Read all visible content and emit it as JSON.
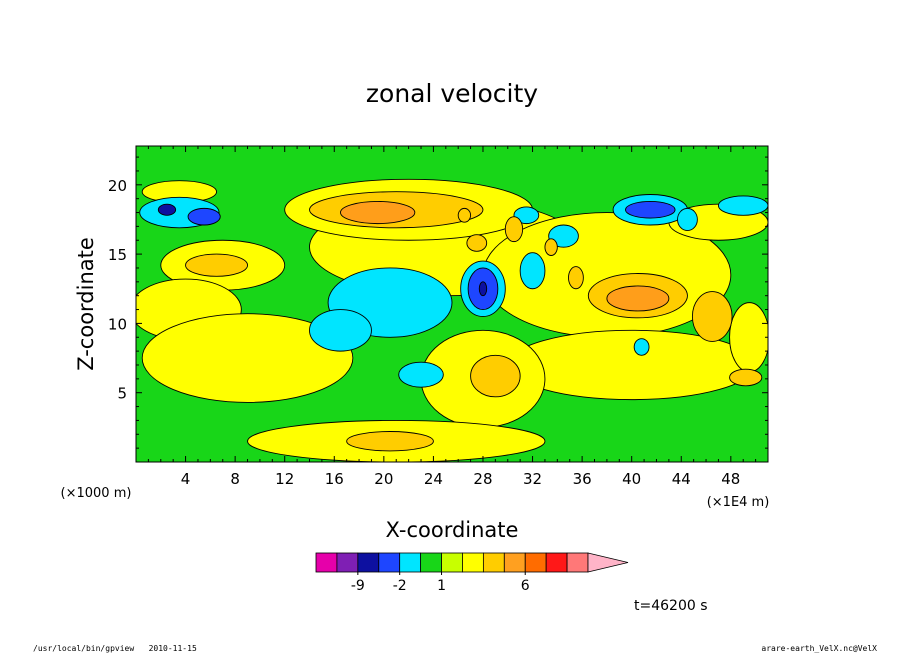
{
  "chart_data": {
    "type": "heatmap",
    "title": "zonal velocity",
    "xlabel": "X-coordinate",
    "ylabel": "Z-coordinate",
    "x_unit_left": "(×1000 m)",
    "x_unit_right": "(×1E4 m)",
    "xlim": [
      0,
      51
    ],
    "ylim": [
      0,
      22.8
    ],
    "x_ticks": [
      4,
      8,
      12,
      16,
      20,
      24,
      28,
      32,
      36,
      40,
      44,
      48
    ],
    "y_ticks": [
      5,
      10,
      15,
      20
    ],
    "time_label": "t=46200 s",
    "footer_left": "/usr/local/bin/gpview   2010-11-15",
    "footer_right": "arare-earth_VelX.nc@VelX",
    "colorbar": {
      "bins": [
        {
          "color": "#e600aa"
        },
        {
          "color": "#7f1fb4"
        },
        {
          "color": "#0d10a0"
        },
        {
          "color": "#1e46ff"
        },
        {
          "color": "#00e5ff"
        },
        {
          "color": "#18d618"
        },
        {
          "color": "#c8ff00"
        },
        {
          "color": "#ffff00"
        },
        {
          "color": "#ffcd00"
        },
        {
          "color": "#ffa020"
        },
        {
          "color": "#ff6c00"
        },
        {
          "color": "#ff1818"
        },
        {
          "color": "#ff7878"
        },
        {
          "color": "#ffb4c8"
        }
      ],
      "tick_labels": [
        {
          "label": "-9",
          "bin": 2
        },
        {
          "label": "-2",
          "bin": 4
        },
        {
          "label": "1",
          "bin": 6
        },
        {
          "label": "6",
          "bin": 10
        }
      ]
    },
    "background_class": "weak (green, near 0)",
    "regions": [
      {
        "cls": "yellow",
        "cx": 7,
        "cy": 14.2,
        "rx": 5,
        "ry": 1.8
      },
      {
        "cls": "orange",
        "cx": 6.5,
        "cy": 14.2,
        "rx": 2.5,
        "ry": 0.8
      },
      {
        "cls": "yellow",
        "cx": 4,
        "cy": 11,
        "rx": 4.5,
        "ry": 2.2
      },
      {
        "cls": "yellow",
        "cx": 9,
        "cy": 7.5,
        "rx": 8.5,
        "ry": 3.2
      },
      {
        "cls": "yellow",
        "cx": 25,
        "cy": 15.5,
        "rx": 11,
        "ry": 3.5
      },
      {
        "cls": "yellow",
        "cx": 22,
        "cy": 18.2,
        "rx": 10,
        "ry": 2.2
      },
      {
        "cls": "orange",
        "cx": 21,
        "cy": 18.2,
        "rx": 7,
        "ry": 1.3
      },
      {
        "cls": "dorange",
        "cx": 19.5,
        "cy": 18,
        "rx": 3,
        "ry": 0.8
      },
      {
        "cls": "yellow",
        "cx": 38,
        "cy": 13.5,
        "rx": 10,
        "ry": 4.5
      },
      {
        "cls": "orange",
        "cx": 40.5,
        "cy": 12,
        "rx": 4,
        "ry": 1.6
      },
      {
        "cls": "dorange",
        "cx": 40.5,
        "cy": 11.8,
        "rx": 2.5,
        "ry": 0.9
      },
      {
        "cls": "yellow",
        "cx": 40,
        "cy": 7,
        "rx": 10,
        "ry": 2.5
      },
      {
        "cls": "yellow",
        "cx": 28,
        "cy": 6,
        "rx": 5,
        "ry": 3.5
      },
      {
        "cls": "orange",
        "cx": 29,
        "cy": 6.2,
        "rx": 2,
        "ry": 1.5
      },
      {
        "cls": "yellow",
        "cx": 21,
        "cy": 1.5,
        "rx": 12,
        "ry": 1.5
      },
      {
        "cls": "orange",
        "cx": 20.5,
        "cy": 1.5,
        "rx": 3.5,
        "ry": 0.7
      },
      {
        "cls": "yellow",
        "cx": 47,
        "cy": 17.3,
        "rx": 4,
        "ry": 1.3
      },
      {
        "cls": "yellow",
        "cx": 49.5,
        "cy": 9,
        "rx": 1.6,
        "ry": 2.5
      },
      {
        "cls": "orange",
        "cx": 49.2,
        "cy": 6.1,
        "rx": 1.3,
        "ry": 0.6
      },
      {
        "cls": "orange",
        "cx": 46.5,
        "cy": 10.5,
        "rx": 1.6,
        "ry": 1.8
      },
      {
        "cls": "yellow",
        "cx": 3.5,
        "cy": 19.5,
        "rx": 3,
        "ry": 0.8
      },
      {
        "cls": "cyan",
        "cx": 3.5,
        "cy": 18,
        "rx": 3.2,
        "ry": 1.1
      },
      {
        "cls": "blue",
        "cx": 5.5,
        "cy": 17.7,
        "rx": 1.3,
        "ry": 0.6
      },
      {
        "cls": "dblue",
        "cx": 2.5,
        "cy": 18.2,
        "rx": 0.7,
        "ry": 0.4
      },
      {
        "cls": "cyan",
        "cx": 20.5,
        "cy": 11.5,
        "rx": 5,
        "ry": 2.5
      },
      {
        "cls": "cyan",
        "cx": 16.5,
        "cy": 9.5,
        "rx": 2.5,
        "ry": 1.5
      },
      {
        "cls": "cyan",
        "cx": 23,
        "cy": 6.3,
        "rx": 1.8,
        "ry": 0.9
      },
      {
        "cls": "cyan",
        "cx": 28,
        "cy": 12.5,
        "rx": 1.8,
        "ry": 2
      },
      {
        "cls": "blue",
        "cx": 28,
        "cy": 12.5,
        "rx": 1.2,
        "ry": 1.5
      },
      {
        "cls": "dblue",
        "cx": 28,
        "cy": 12.5,
        "rx": 0.3,
        "ry": 0.5
      },
      {
        "cls": "cyan",
        "cx": 41.5,
        "cy": 18.2,
        "rx": 3,
        "ry": 1.1
      },
      {
        "cls": "blue",
        "cx": 41.5,
        "cy": 18.2,
        "rx": 2,
        "ry": 0.6
      },
      {
        "cls": "cyan",
        "cx": 44.5,
        "cy": 17.5,
        "rx": 0.8,
        "ry": 0.8
      },
      {
        "cls": "cyan",
        "cx": 49,
        "cy": 18.5,
        "rx": 2,
        "ry": 0.7
      },
      {
        "cls": "cyan",
        "cx": 32,
        "cy": 13.8,
        "rx": 1,
        "ry": 1.3
      },
      {
        "cls": "cyan",
        "cx": 34.5,
        "cy": 16.3,
        "rx": 1.2,
        "ry": 0.8
      },
      {
        "cls": "cyan",
        "cx": 40.8,
        "cy": 8.3,
        "rx": 0.6,
        "ry": 0.6
      },
      {
        "cls": "cyan",
        "cx": 31.5,
        "cy": 17.8,
        "rx": 1,
        "ry": 0.6
      },
      {
        "cls": "orange",
        "cx": 27.5,
        "cy": 15.8,
        "rx": 0.8,
        "ry": 0.6
      },
      {
        "cls": "orange",
        "cx": 30.5,
        "cy": 16.8,
        "rx": 0.7,
        "ry": 0.9
      },
      {
        "cls": "orange",
        "cx": 26.5,
        "cy": 17.8,
        "rx": 0.5,
        "ry": 0.5
      },
      {
        "cls": "orange",
        "cx": 35.5,
        "cy": 13.3,
        "rx": 0.6,
        "ry": 0.8
      },
      {
        "cls": "orange",
        "cx": 33.5,
        "cy": 15.5,
        "rx": 0.5,
        "ry": 0.6
      }
    ]
  }
}
